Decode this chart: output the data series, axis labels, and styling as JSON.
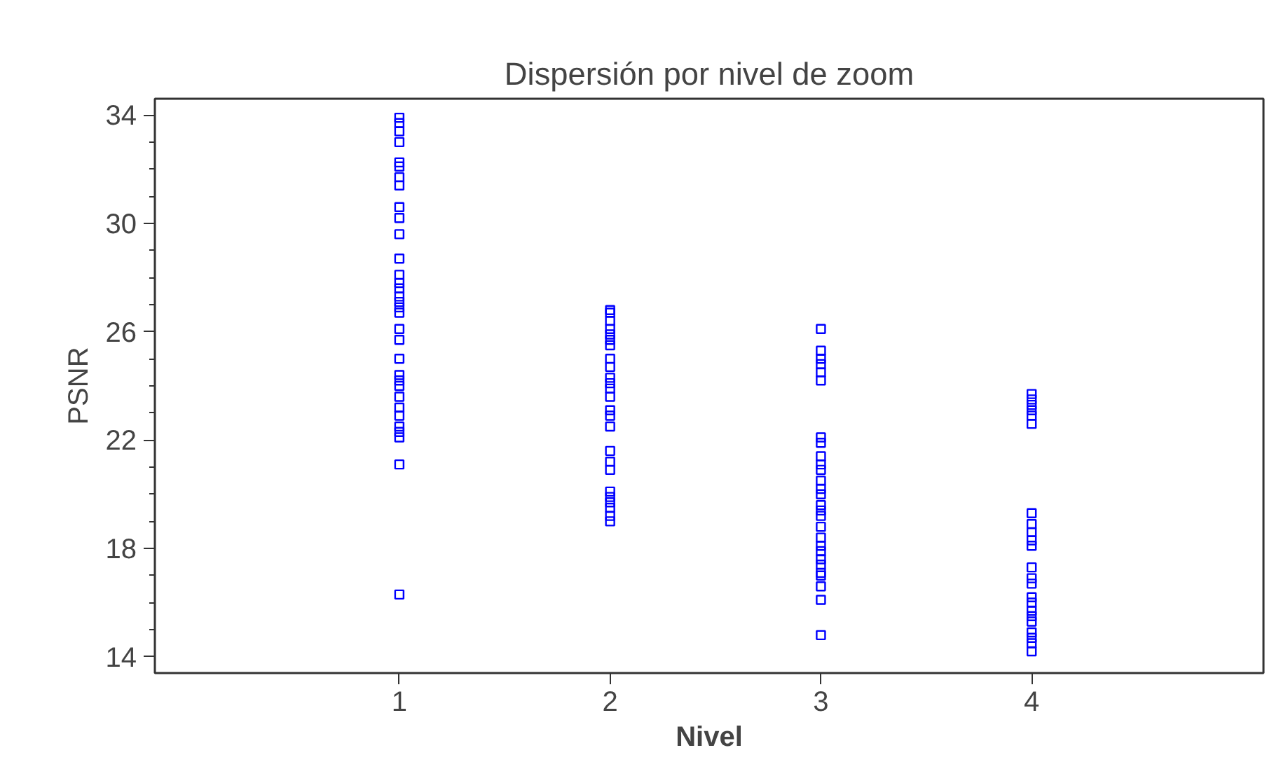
{
  "chart_data": {
    "type": "scatter",
    "title": "Dispersión por nivel de zoom",
    "xlabel": "Nivel",
    "ylabel": "PSNR",
    "marker": "square",
    "xlim": [
      -0.16,
      5.1
    ],
    "xticks": [
      1,
      2,
      3,
      4
    ],
    "ylim": [
      13.4,
      34.6
    ],
    "yticks": [
      14,
      {
        "value": 15,
        "label": null
      },
      {
        "value": 16,
        "label": null
      },
      {
        "value": 17,
        "label": null
      },
      18,
      {
        "value": 19,
        "label": null
      },
      {
        "value": 20,
        "label": null
      },
      {
        "value": 21,
        "label": null
      },
      22,
      {
        "value": 23,
        "label": null
      },
      {
        "value": 24,
        "label": null
      },
      {
        "value": 25,
        "label": null
      },
      26,
      {
        "value": 27,
        "label": null
      },
      {
        "value": 28,
        "label": null
      },
      {
        "value": 29,
        "label": null
      },
      30,
      {
        "value": 31,
        "label": null
      },
      {
        "value": 32,
        "label": null
      },
      {
        "value": 33,
        "label": null
      },
      34
    ],
    "series": [
      {
        "color": "#0000ff",
        "x": [
          1,
          1,
          1,
          1,
          1,
          1,
          1,
          1,
          1,
          1,
          1,
          1,
          1,
          1,
          1,
          1,
          1,
          1,
          1,
          1,
          1,
          1,
          1,
          1,
          1,
          1,
          1,
          1,
          1,
          1,
          1,
          1,
          1
        ],
        "values": [
          33.9,
          33.7,
          33.4,
          33.0,
          32.25,
          32.1,
          31.7,
          31.4,
          30.6,
          30.2,
          29.6,
          28.7,
          28.1,
          27.8,
          27.6,
          27.3,
          27.1,
          26.9,
          26.7,
          26.1,
          25.7,
          25.0,
          24.4,
          24.2,
          24.0,
          23.6,
          23.2,
          22.9,
          22.5,
          22.3,
          22.1,
          21.1,
          16.3
        ]
      },
      {
        "color": "#0000ff",
        "x": [
          2,
          2,
          2,
          2,
          2,
          2,
          2,
          2,
          2,
          2,
          2,
          2,
          2,
          2,
          2,
          2,
          2,
          2,
          2,
          2,
          2,
          2,
          2,
          2,
          2
        ],
        "values": [
          26.8,
          26.7,
          26.4,
          26.1,
          25.9,
          25.7,
          25.5,
          25.0,
          24.7,
          24.3,
          24.1,
          23.9,
          23.6,
          23.1,
          22.9,
          22.5,
          21.6,
          21.2,
          20.9,
          20.1,
          19.9,
          19.7,
          19.5,
          19.2,
          19.0
        ]
      },
      {
        "color": "#0000ff",
        "x": [
          3,
          3,
          3,
          3,
          3,
          3,
          3,
          3,
          3,
          3,
          3,
          3,
          3,
          3,
          3,
          3,
          3,
          3,
          3,
          3,
          3,
          3,
          3,
          3,
          3,
          3,
          3,
          3
        ],
        "values": [
          26.1,
          25.3,
          25.0,
          24.8,
          24.5,
          24.2,
          22.1,
          21.9,
          21.4,
          21.1,
          20.9,
          20.5,
          20.2,
          20.0,
          19.6,
          19.4,
          19.2,
          18.8,
          18.4,
          18.1,
          17.9,
          17.6,
          17.4,
          17.1,
          17.0,
          16.6,
          16.1,
          14.8
        ]
      },
      {
        "color": "#0000ff",
        "x": [
          4,
          4,
          4,
          4,
          4,
          4,
          4,
          4,
          4,
          4,
          4,
          4,
          4,
          4,
          4,
          4,
          4,
          4,
          4,
          4,
          4,
          4,
          4
        ],
        "values": [
          23.7,
          23.5,
          23.3,
          23.1,
          22.9,
          22.6,
          19.3,
          18.9,
          18.6,
          18.3,
          18.1,
          17.3,
          16.9,
          16.7,
          16.2,
          16.0,
          15.7,
          15.5,
          15.3,
          14.9,
          14.7,
          14.5,
          14.2
        ]
      }
    ]
  }
}
